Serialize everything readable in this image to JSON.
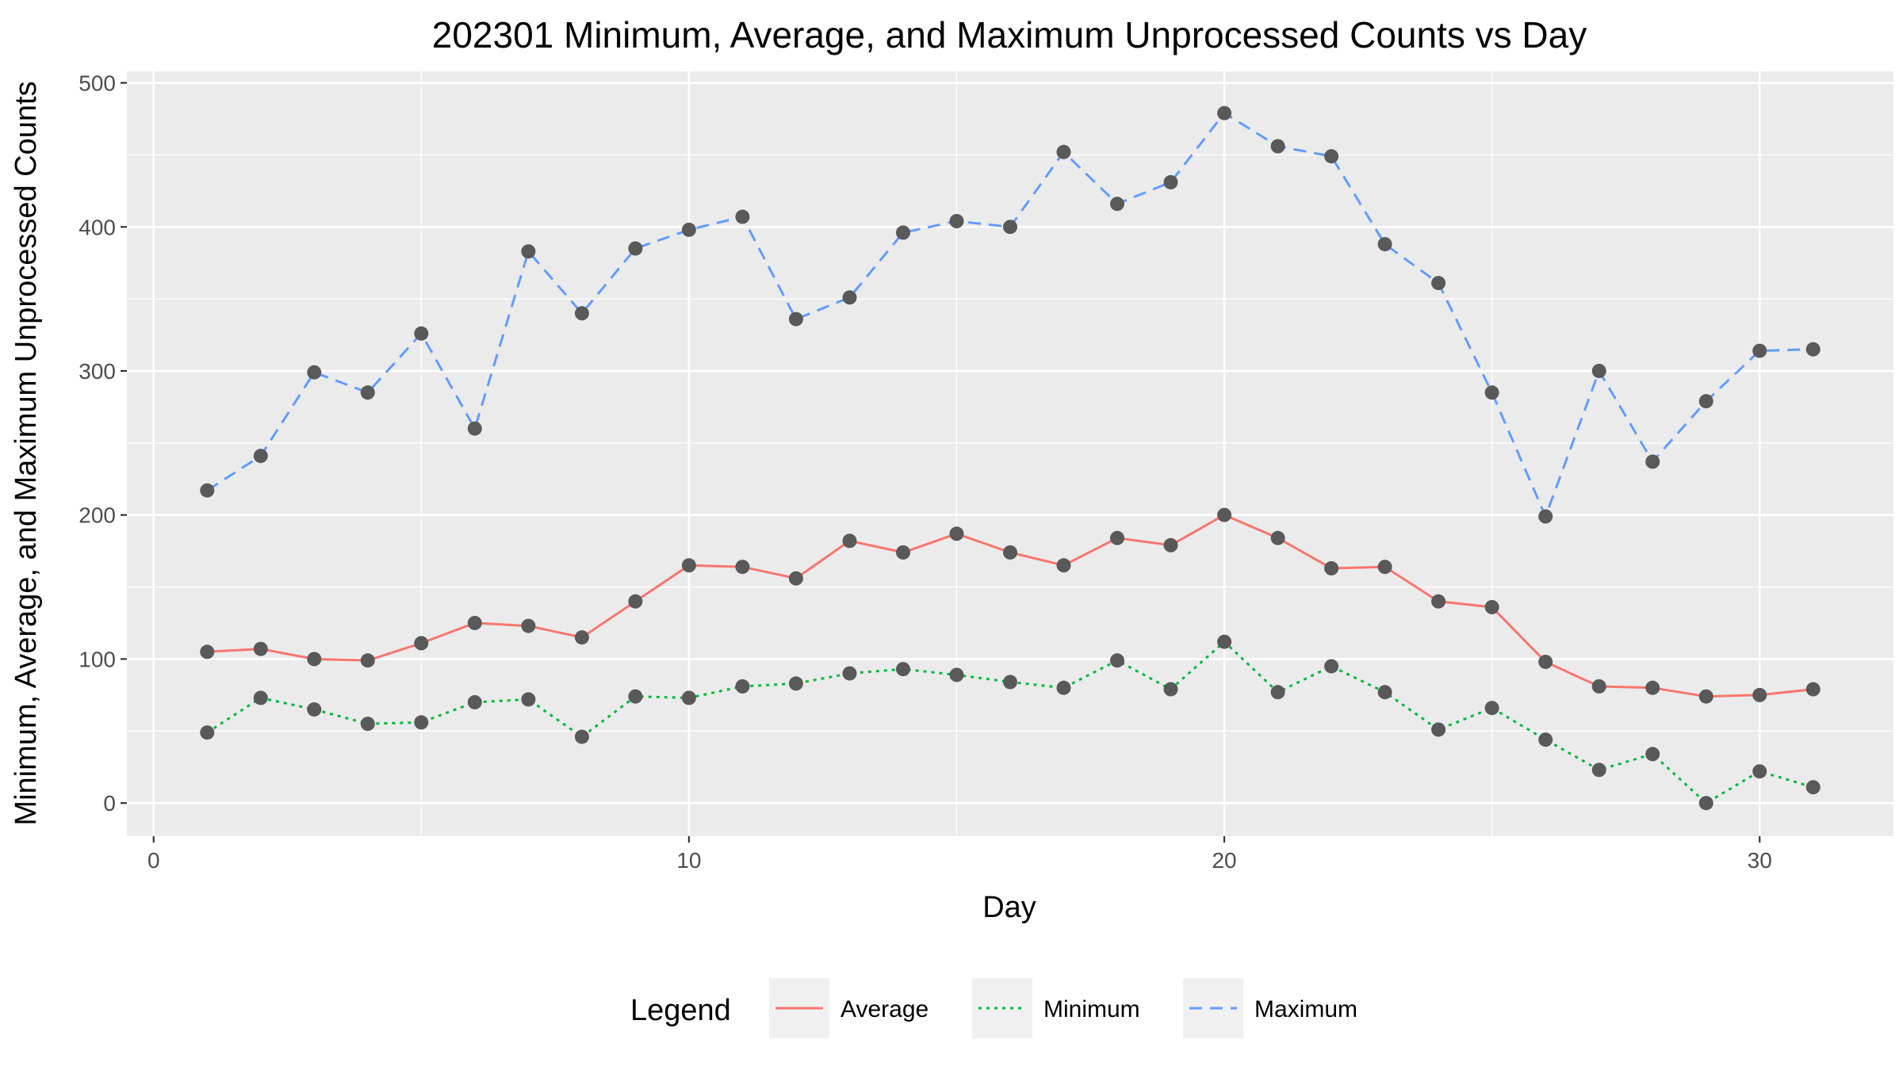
{
  "chart_data": {
    "type": "line",
    "title": "202301 Minimum, Average, and Maximum Unprocessed Counts vs Day",
    "xlabel": "Day",
    "ylabel": "Minimum, Average, and Maximum Unprocessed Counts",
    "xlim": [
      -0.5,
      32.5
    ],
    "ylim": [
      -23,
      508
    ],
    "x_ticks": [
      0,
      10,
      20,
      30
    ],
    "y_ticks": [
      0,
      100,
      200,
      300,
      400,
      500
    ],
    "grid": true,
    "legend": {
      "title": "Legend",
      "position": "bottom"
    },
    "point_color": "#595959",
    "x": [
      1,
      2,
      3,
      4,
      5,
      6,
      7,
      8,
      9,
      10,
      11,
      12,
      13,
      14,
      15,
      16,
      17,
      18,
      19,
      20,
      21,
      22,
      23,
      24,
      25,
      26,
      27,
      28,
      29,
      30,
      31
    ],
    "series": [
      {
        "name": "Average",
        "color": "#F8766D",
        "dash": "solid",
        "values": [
          105,
          107,
          100,
          99,
          111,
          125,
          123,
          115,
          140,
          165,
          164,
          156,
          182,
          174,
          187,
          174,
          165,
          184,
          179,
          200,
          184,
          163,
          164,
          140,
          136,
          98,
          81,
          80,
          74,
          75,
          79
        ]
      },
      {
        "name": "Minimum",
        "color": "#00BA38",
        "dash": "dotted",
        "values": [
          49,
          73,
          65,
          55,
          56,
          70,
          72,
          46,
          74,
          73,
          81,
          83,
          90,
          93,
          89,
          84,
          80,
          99,
          79,
          112,
          77,
          95,
          77,
          51,
          66,
          44,
          23,
          34,
          0,
          22,
          11
        ]
      },
      {
        "name": "Maximum",
        "color": "#619CFF",
        "dash": "dashed",
        "values": [
          217,
          241,
          299,
          285,
          326,
          260,
          383,
          340,
          385,
          398,
          407,
          336,
          351,
          396,
          404,
          400,
          452,
          416,
          431,
          479,
          456,
          449,
          388,
          361,
          285,
          199,
          300,
          237,
          279,
          314,
          315
        ]
      }
    ]
  }
}
